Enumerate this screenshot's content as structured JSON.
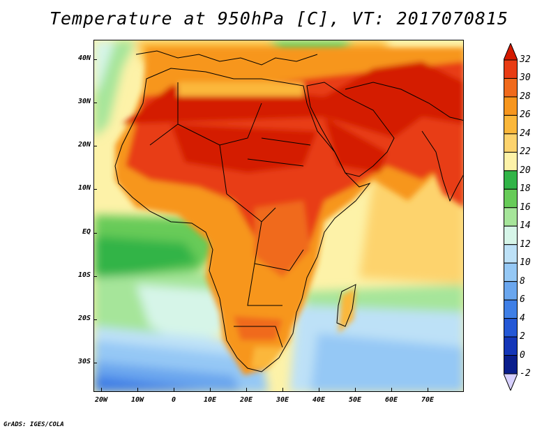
{
  "title": "Temperature at 950hPa [C], VT: 2017070815",
  "credit": "GrADS: IGES/COLA",
  "map": {
    "projection": "lat-lon",
    "lon_range": [
      -22,
      80
    ],
    "lat_range": [
      -36,
      46
    ],
    "lat_ticks": [
      {
        "value": 40,
        "label": "40N"
      },
      {
        "value": 30,
        "label": "30N"
      },
      {
        "value": 20,
        "label": "20N"
      },
      {
        "value": 10,
        "label": "10N"
      },
      {
        "value": 0,
        "label": "EQ"
      },
      {
        "value": -10,
        "label": "10S"
      },
      {
        "value": -20,
        "label": "20S"
      },
      {
        "value": -30,
        "label": "30S"
      }
    ],
    "lon_ticks": [
      {
        "value": -20,
        "label": "20W"
      },
      {
        "value": -10,
        "label": "10W"
      },
      {
        "value": 0,
        "label": "0"
      },
      {
        "value": 10,
        "label": "10E"
      },
      {
        "value": 20,
        "label": "20E"
      },
      {
        "value": 30,
        "label": "30E"
      },
      {
        "value": 40,
        "label": "40E"
      },
      {
        "value": 50,
        "label": "50E"
      },
      {
        "value": 60,
        "label": "60E"
      },
      {
        "value": 70,
        "label": "70E"
      }
    ]
  },
  "colorbar": {
    "labels": [
      "32",
      "30",
      "28",
      "26",
      "24",
      "22",
      "20",
      "18",
      "16",
      "14",
      "12",
      "10",
      "8",
      "6",
      "4",
      "2",
      "0",
      "-2"
    ],
    "colors": [
      "#d41a00",
      "#e83c14",
      "#f06a1c",
      "#f7961e",
      "#fbb73a",
      "#fdd36d",
      "#fdf2a8",
      "#31b447",
      "#67cb58",
      "#a6e59a",
      "#d6f5e8",
      "#bde1f7",
      "#95c8f5",
      "#6aa6ee",
      "#3f7fe6",
      "#2458d6",
      "#1436b8",
      "#0a1e8c",
      "#d7d0ff"
    ]
  }
}
